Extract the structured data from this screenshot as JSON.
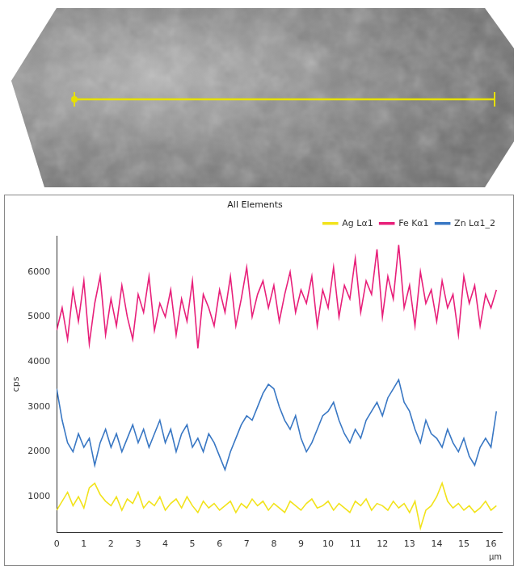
{
  "chart_data": {
    "type": "line",
    "title": "All Elements",
    "x_label": "µm",
    "y_label": "cps",
    "x": [
      0,
      0.2,
      0.4,
      0.6,
      0.8,
      1.0,
      1.2,
      1.4,
      1.6,
      1.8,
      2.0,
      2.2,
      2.4,
      2.6,
      2.8,
      3.0,
      3.2,
      3.4,
      3.6,
      3.8,
      4.0,
      4.2,
      4.4,
      4.6,
      4.8,
      5.0,
      5.2,
      5.4,
      5.6,
      5.8,
      6.0,
      6.2,
      6.4,
      6.6,
      6.8,
      7.0,
      7.2,
      7.4,
      7.6,
      7.8,
      8.0,
      8.2,
      8.4,
      8.6,
      8.8,
      9.0,
      9.2,
      9.4,
      9.6,
      9.8,
      10.0,
      10.2,
      10.4,
      10.6,
      10.8,
      11.0,
      11.2,
      11.4,
      11.6,
      11.8,
      12.0,
      12.2,
      12.4,
      12.6,
      12.8,
      13.0,
      13.2,
      13.4,
      13.6,
      13.8,
      14.0,
      14.2,
      14.4,
      14.6,
      14.8,
      15.0,
      15.2,
      15.4,
      15.6,
      15.8,
      16.0,
      16.2
    ],
    "series": [
      {
        "name": "Ag Lα1",
        "color": "#f2e31c",
        "values": [
          700,
          900,
          1100,
          800,
          1000,
          750,
          1200,
          1300,
          1050,
          900,
          800,
          1000,
          700,
          950,
          850,
          1100,
          750,
          900,
          800,
          1000,
          700,
          850,
          950,
          750,
          1000,
          800,
          650,
          900,
          750,
          850,
          700,
          800,
          900,
          650,
          850,
          750,
          950,
          800,
          900,
          700,
          850,
          750,
          650,
          900,
          800,
          700,
          850,
          950,
          750,
          800,
          900,
          700,
          850,
          750,
          650,
          900,
          800,
          950,
          700,
          850,
          800,
          700,
          900,
          750,
          850,
          650,
          900,
          300,
          700,
          800,
          1000,
          1300,
          900,
          750,
          850,
          700,
          800,
          650,
          750,
          900,
          700,
          800
        ]
      },
      {
        "name": "Fe Kα1",
        "color": "#e8207a",
        "values": [
          4700,
          5200,
          4500,
          5600,
          4900,
          5800,
          4400,
          5300,
          5900,
          4600,
          5400,
          4800,
          5700,
          5000,
          4500,
          5500,
          5100,
          5900,
          4700,
          5300,
          5000,
          5600,
          4600,
          5400,
          4900,
          5800,
          4300,
          5500,
          5200,
          4800,
          5600,
          5100,
          5900,
          4800,
          5400,
          6100,
          5000,
          5500,
          5800,
          5200,
          5700,
          4900,
          5500,
          6000,
          5100,
          5600,
          5300,
          5900,
          4800,
          5600,
          5200,
          6100,
          5000,
          5700,
          5400,
          6300,
          5100,
          5800,
          5500,
          6500,
          5000,
          5900,
          5400,
          6600,
          5200,
          5700,
          4800,
          6000,
          5300,
          5600,
          4900,
          5800,
          5200,
          5500,
          4600,
          5900,
          5300,
          5700,
          4800,
          5500,
          5200,
          5600
        ]
      },
      {
        "name": "Zn Lα1_2",
        "color": "#3a78c4",
        "values": [
          3400,
          2700,
          2200,
          2000,
          2400,
          2100,
          2300,
          1700,
          2200,
          2500,
          2100,
          2400,
          2000,
          2300,
          2600,
          2200,
          2500,
          2100,
          2400,
          2700,
          2200,
          2500,
          2000,
          2400,
          2600,
          2100,
          2300,
          2000,
          2400,
          2200,
          1900,
          1600,
          2000,
          2300,
          2600,
          2800,
          2700,
          3000,
          3300,
          3500,
          3400,
          3000,
          2700,
          2500,
          2800,
          2300,
          2000,
          2200,
          2500,
          2800,
          2900,
          3100,
          2700,
          2400,
          2200,
          2500,
          2300,
          2700,
          2900,
          3100,
          2800,
          3200,
          3400,
          3600,
          3100,
          2900,
          2500,
          2200,
          2700,
          2400,
          2300,
          2100,
          2500,
          2200,
          2000,
          2300,
          1900,
          1700,
          2100,
          2300,
          2100,
          2900
        ]
      }
    ],
    "xlim": [
      0,
      16.4
    ],
    "xticks": [
      0,
      1,
      2,
      3,
      4,
      5,
      6,
      7,
      8,
      9,
      10,
      11,
      12,
      13,
      14,
      15,
      16
    ],
    "ylim": [
      200,
      6800
    ],
    "yticks": [
      1000,
      2000,
      3000,
      4000,
      5000,
      6000
    ],
    "grid": false,
    "legend": "top right"
  }
}
